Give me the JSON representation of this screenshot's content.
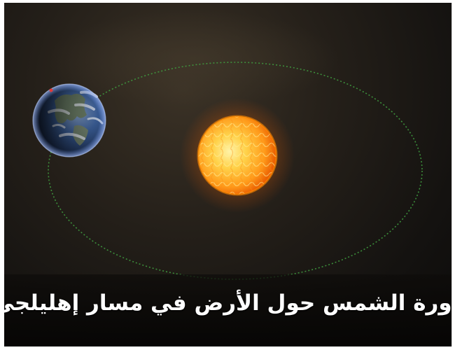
{
  "caption": "دورة الشمس حول الأرض في مسار إهليلجي",
  "scene": {
    "objects": [
      "earth",
      "sun",
      "elliptical-orbit"
    ],
    "orbit_color": "#3f9a3f",
    "sun_core_color": "#ffd24a",
    "sun_edge_color": "#ff7a00",
    "earth_ocean_color": "#2d4f8a",
    "marker_color": "#e23b3b"
  }
}
